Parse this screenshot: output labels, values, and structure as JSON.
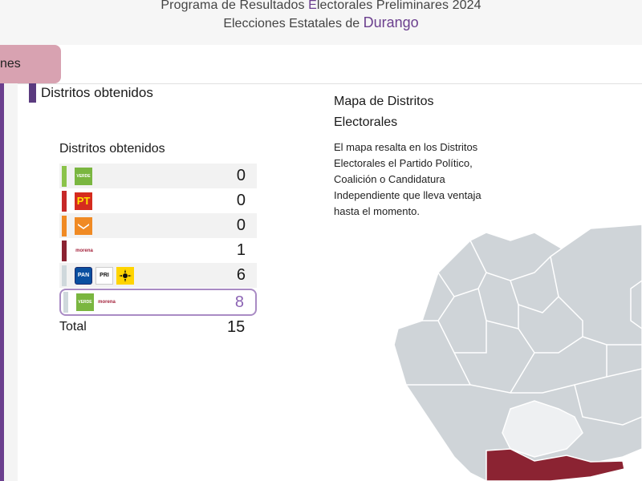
{
  "header": {
    "title_line1_prefix": "Programa de Resultados ",
    "title_line1_highlight": "E",
    "title_line1_suffix": "lectorales Preliminares 2024",
    "title_line2_prefix": "Elecciones Estatales de ",
    "title_line2_state": "Durango"
  },
  "top_tab": {
    "label": "nes"
  },
  "section": {
    "title": "Distritos obtenidos"
  },
  "card": {
    "title": "Distritos obtenidos",
    "rows": [
      {
        "stripe_color": "#8bc34a",
        "logos": [
          "VERDE"
        ],
        "count": "0"
      },
      {
        "stripe_color": "#c62828",
        "logos": [
          "PT"
        ],
        "count": "0"
      },
      {
        "stripe_color": "#f08a24",
        "logos": [
          "MC"
        ],
        "count": "0"
      },
      {
        "stripe_color": "#8b2332",
        "logos": [
          "morena"
        ],
        "count": "1"
      },
      {
        "stripe_color": "#cfd8dc",
        "logos": [
          "PAN",
          "PRI",
          "PRD"
        ],
        "count": "6"
      },
      {
        "stripe_color": "#cfd8dc",
        "logos": [
          "VERDE",
          "morena"
        ],
        "count": "8"
      }
    ],
    "total_label": "Total",
    "total_value": "15"
  },
  "map_panel": {
    "title": "Mapa de Distritos Electorales",
    "description": "El mapa resalta en los Distritos Electorales el Partido Político, Coalición o Candidatura Independiente que lleva ventaja hasta el momento.",
    "colors": {
      "gray": "#cfd4d8",
      "light": "#eef0f2",
      "maroon": "#8b2332"
    }
  },
  "colors": {
    "accent": "#6b3f8e",
    "tab_bg": "#d8a2b1"
  }
}
